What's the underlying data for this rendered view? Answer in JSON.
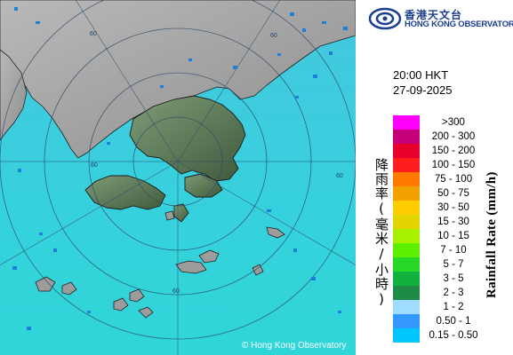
{
  "org": {
    "name_zh": "香港天文台",
    "name_en": "HONG KONG OBSERVATORY"
  },
  "timestamp": {
    "time": "20:00 HKT",
    "date": "27-09-2025"
  },
  "legend": {
    "title_en": "Rainfall Rate (mm/h)",
    "title_zh": "降雨率(毫米/小時)",
    "bands": [
      {
        "label": ">300",
        "color": "#ff00ff"
      },
      {
        "label": "200 - 300",
        "color": "#c4007a"
      },
      {
        "label": "150 - 200",
        "color": "#e8002c"
      },
      {
        "label": "100 - 150",
        "color": "#ff1e1e"
      },
      {
        "label": "75 - 100",
        "color": "#ff7a00"
      },
      {
        "label": "50 - 75",
        "color": "#f2a100"
      },
      {
        "label": "30 - 50",
        "color": "#ffcc00"
      },
      {
        "label": "15 - 30",
        "color": "#e2d400"
      },
      {
        "label": "10 - 15",
        "color": "#a6f000"
      },
      {
        "label": "7 - 10",
        "color": "#5ef000"
      },
      {
        "label": "5 - 7",
        "color": "#27d827"
      },
      {
        "label": "3 - 5",
        "color": "#12b03c"
      },
      {
        "label": "2 - 3",
        "color": "#1e8c46"
      },
      {
        "label": "1 - 2",
        "color": "#9fdcff"
      },
      {
        "label": "0.50 - 1",
        "color": "#3399ff"
      },
      {
        "label": "0.15 - 0.50",
        "color": "#00c8ff"
      }
    ]
  },
  "map": {
    "range_ring_label": "60",
    "copyright": "© Hong Kong Observatory"
  }
}
